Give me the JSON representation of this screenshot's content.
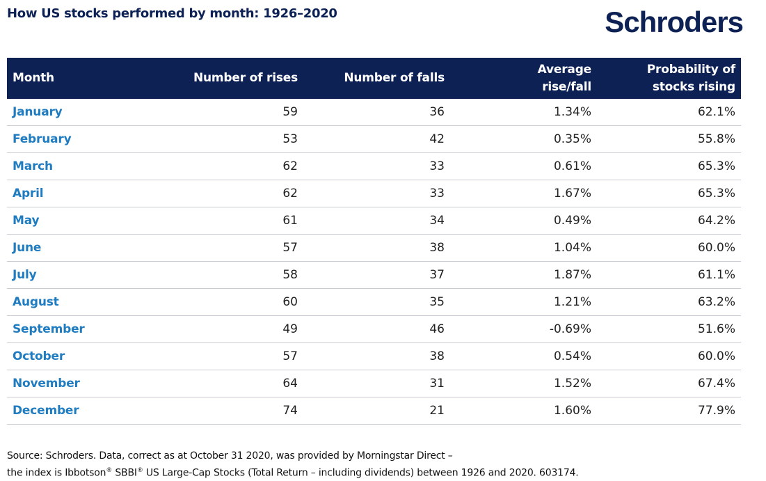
{
  "title": "How US stocks performed by month: 1926–2020",
  "logo": "Schroders",
  "colors": {
    "header_bg": "#0d2155",
    "header_text": "#ffffff",
    "month_text": "#1f7cc0",
    "title_text": "#0d2155",
    "row_border": "#c9cdd3"
  },
  "chart_data": {
    "type": "table",
    "title": "How US stocks performed by month: 1926–2020",
    "columns": [
      "Month",
      "Number of rises",
      "Number of falls",
      "Average rise/fall",
      "Probability of stocks rising"
    ],
    "header_lines": [
      [
        "Month"
      ],
      [
        "Number of rises"
      ],
      [
        "Number of falls"
      ],
      [
        "Average",
        "rise/fall"
      ],
      [
        "Probability of",
        "stocks rising"
      ]
    ],
    "rows": [
      [
        "January",
        "59",
        "36",
        "1.34%",
        "62.1%"
      ],
      [
        "February",
        "53",
        "42",
        "0.35%",
        "55.8%"
      ],
      [
        "March",
        "62",
        "33",
        "0.61%",
        "65.3%"
      ],
      [
        "April",
        "62",
        "33",
        "1.67%",
        "65.3%"
      ],
      [
        "May",
        "61",
        "34",
        "0.49%",
        "64.2%"
      ],
      [
        "June",
        "57",
        "38",
        "1.04%",
        "60.0%"
      ],
      [
        "July",
        "58",
        "37",
        "1.87%",
        "61.1%"
      ],
      [
        "August",
        "60",
        "35",
        "1.21%",
        "63.2%"
      ],
      [
        "September",
        "49",
        "46",
        "-0.69%",
        "51.6%"
      ],
      [
        "October",
        "57",
        "38",
        "0.54%",
        "60.0%"
      ],
      [
        "November",
        "64",
        "31",
        "1.52%",
        "67.4%"
      ],
      [
        "December",
        "74",
        "21",
        "1.60%",
        "77.9%"
      ]
    ]
  },
  "source": {
    "line1": "Source: Schroders. Data, correct as at October 31 2020, was provided by Morningstar Direct –",
    "line2_part1": "the index is Ibbotson",
    "reg1": "®",
    "line2_part2": " SBBI",
    "reg2": "®",
    "line2_part3": " US Large-Cap Stocks (Total Return – including dividends) between 1926 and 2020. 603174."
  }
}
